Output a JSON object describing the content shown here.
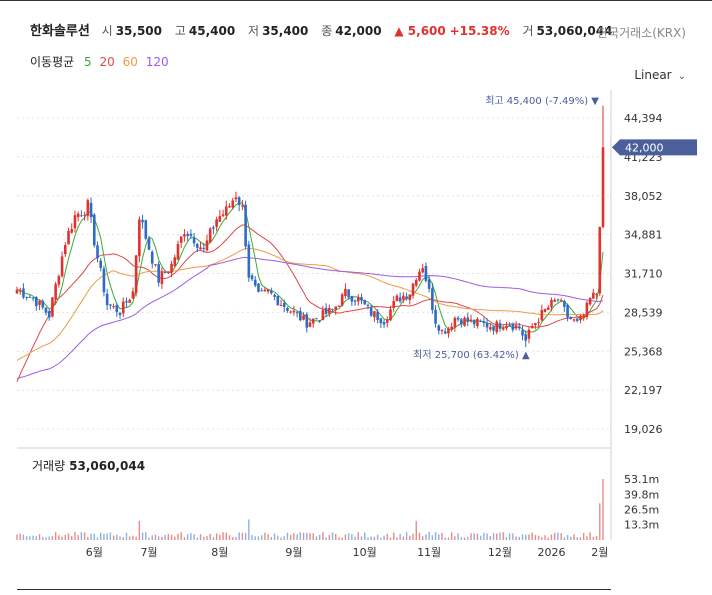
{
  "header": {
    "name": "한화솔루션",
    "open_label": "시",
    "open": "35,500",
    "high_label": "고",
    "high": "45,400",
    "low_label": "저",
    "low": "35,400",
    "close_label": "종",
    "close": "42,000",
    "change": "▲ 5,600",
    "change_pct": "+15.38%",
    "vol_label": "거",
    "volume": "53,060,044",
    "exchange": "한국거래소(KRX)"
  },
  "moving_avg": {
    "label": "이동평균",
    "periods": [
      {
        "p": "5",
        "color": "#3aab3a"
      },
      {
        "p": "20",
        "color": "#e04848"
      },
      {
        "p": "60",
        "color": "#ef9a48"
      },
      {
        "p": "120",
        "color": "#9b5de5"
      }
    ]
  },
  "scale_mode": "Linear",
  "colors": {
    "up": "#e1322d",
    "down": "#2f6bc4",
    "current_tag": "#4a5f9b"
  },
  "chart_data": {
    "type": "candlestick",
    "y_ticks": [
      "44,394",
      "41,223",
      "38,052",
      "34,881",
      "31,710",
      "28,539",
      "25,368",
      "22,197",
      "19,026"
    ],
    "y_tick_values": [
      44394,
      41223,
      38052,
      34881,
      31710,
      28539,
      25368,
      22197,
      19026
    ],
    "x_ticks": [
      "6월",
      "7월",
      "8월",
      "9월",
      "10월",
      "11월",
      "12월",
      "2026",
      "2월"
    ],
    "current_price": "42,000",
    "current_value": 42000,
    "high_annotation": "최고 45,400 (-7.49%)",
    "low_annotation": "최저 25,700 (63.42%)",
    "high_value": 45400,
    "low_value": 25700,
    "volume_label": "거래량",
    "volume_value": "53,060,044",
    "volume_ticks": [
      "53.1m",
      "39.8m",
      "26.5m",
      "13.3m"
    ],
    "volume_tick_values": [
      53.1,
      39.8,
      26.5,
      13.3
    ],
    "ohlc_anchors": [
      [
        0,
        30400
      ],
      [
        5,
        29700
      ],
      [
        10,
        28300
      ],
      [
        15,
        34300
      ],
      [
        18,
        36400
      ],
      [
        22,
        37200
      ],
      [
        25,
        33000
      ],
      [
        28,
        29200
      ],
      [
        32,
        28600
      ],
      [
        36,
        30200
      ],
      [
        38,
        36500
      ],
      [
        41,
        33800
      ],
      [
        44,
        31200
      ],
      [
        48,
        32400
      ],
      [
        52,
        35300
      ],
      [
        55,
        34600
      ],
      [
        58,
        33600
      ],
      [
        62,
        36200
      ],
      [
        65,
        36800
      ],
      [
        68,
        38200
      ],
      [
        70,
        37000
      ],
      [
        72,
        31600
      ],
      [
        75,
        29800
      ],
      [
        78,
        30200
      ],
      [
        82,
        29300
      ],
      [
        86,
        28500
      ],
      [
        90,
        27700
      ],
      [
        94,
        28200
      ],
      [
        98,
        28700
      ],
      [
        102,
        30100
      ],
      [
        106,
        29600
      ],
      [
        110,
        28500
      ],
      [
        114,
        27900
      ],
      [
        118,
        29600
      ],
      [
        122,
        30200
      ],
      [
        124,
        31600
      ],
      [
        126,
        32400
      ],
      [
        128,
        30200
      ],
      [
        130,
        27900
      ],
      [
        132,
        27000
      ],
      [
        134,
        27300
      ],
      [
        136,
        28100
      ],
      [
        140,
        27800
      ],
      [
        144,
        27600
      ],
      [
        148,
        27400
      ],
      [
        152,
        27700
      ],
      [
        156,
        27300
      ],
      [
        158,
        26200
      ],
      [
        160,
        27400
      ],
      [
        163,
        28400
      ],
      [
        166,
        29200
      ],
      [
        168,
        29600
      ],
      [
        171,
        28200
      ],
      [
        174,
        27600
      ],
      [
        176,
        28200
      ],
      [
        178,
        29600
      ],
      [
        180,
        30100
      ],
      [
        181,
        35500
      ],
      [
        182,
        42000
      ]
    ]
  }
}
